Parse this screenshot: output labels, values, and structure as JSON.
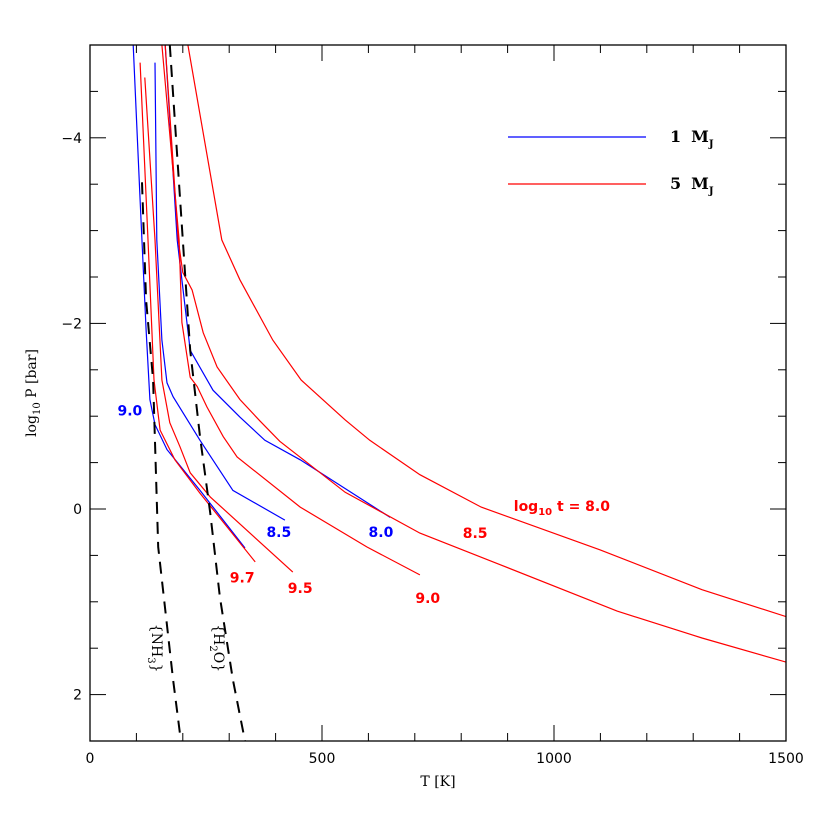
{
  "chart_data": {
    "type": "line",
    "title": "",
    "xlabel": "T [K]",
    "ylabel": {
      "pre": "log",
      "sub": "10",
      "post": " P [bar]"
    },
    "xlim": [
      0,
      1500
    ],
    "ylim": [
      -5,
      2.5
    ],
    "y_inverted": true,
    "grid": false,
    "legend_placement": "top-right",
    "x_ticks": [
      "0",
      "500",
      "1000",
      "1500"
    ],
    "x_tick_values": [
      0,
      500,
      1000,
      1500
    ],
    "y_ticks": [
      "−4",
      "−2",
      "0",
      "2"
    ],
    "y_tick_values": [
      -4,
      -2,
      0,
      2
    ],
    "colors": {
      "1 MJ": "#0000ff",
      "5 MJ": "#ff0000",
      "condensation": "#000000"
    },
    "legend": [
      {
        "num": "1",
        "text": "M",
        "sub": "J",
        "color": "#0000ff"
      },
      {
        "num": "5",
        "text": "M",
        "sub": "J",
        "color": "#ff0000"
      }
    ],
    "series": [
      {
        "mass": "1 MJ",
        "log_age": "9.0",
        "color": "#0000ff",
        "x": [
          93,
          108,
          121,
          129,
          140,
          166,
          237,
          334
        ],
        "y": [
          -5.0,
          -3.33,
          -1.93,
          -1.18,
          -0.91,
          -0.64,
          -0.2,
          0.42
        ]
      },
      {
        "mass": "1 MJ",
        "log_age": "8.5",
        "color": "#0000ff",
        "x": [
          140,
          144,
          155,
          166,
          179,
          237,
          308,
          420
        ],
        "y": [
          -4.81,
          -2.9,
          -1.82,
          -1.36,
          -1.21,
          -0.74,
          -0.2,
          0.12
        ]
      },
      {
        "mass": "1 MJ",
        "log_age": "8.0",
        "color": "#0000ff",
        "x": [
          162,
          188,
          216,
          265,
          323,
          377,
          453,
          647
        ],
        "y": [
          -5.0,
          -2.9,
          -1.71,
          -1.28,
          -0.99,
          -0.74,
          -0.53,
          0.09
        ]
      },
      {
        "mass": "5 MJ",
        "log_age": "9.7",
        "color": "#ff0000",
        "x": [
          108,
          125,
          138,
          151,
          183,
          237,
          356
        ],
        "y": [
          -4.81,
          -2.9,
          -1.39,
          -0.85,
          -0.53,
          -0.17,
          0.57
        ]
      },
      {
        "mass": "5 MJ",
        "log_age": "9.5",
        "color": "#ff0000",
        "x": [
          118,
          140,
          155,
          172,
          194,
          216,
          259,
          437
        ],
        "y": [
          -4.65,
          -2.9,
          -1.39,
          -0.93,
          -0.67,
          -0.39,
          -0.13,
          0.68
        ]
      },
      {
        "mass": "5 MJ",
        "log_age": "9.0",
        "color": "#ff0000",
        "x": [
          155,
          192,
          198,
          216,
          231,
          252,
          287,
          317,
          453,
          597,
          711
        ],
        "y": [
          -5.0,
          -2.9,
          -2.01,
          -1.42,
          -1.32,
          -1.1,
          -0.78,
          -0.56,
          -0.02,
          0.41,
          0.71
        ]
      },
      {
        "mass": "5 MJ",
        "log_age": "8.5",
        "color": "#ff0000",
        "x": [
          162,
          190,
          200,
          220,
          244,
          274,
          323,
          366,
          409,
          550,
          711,
          879,
          1136,
          1319,
          1500
        ],
        "y": [
          -5.0,
          -2.9,
          -2.55,
          -2.36,
          -1.9,
          -1.53,
          -1.18,
          -0.95,
          -0.73,
          -0.18,
          0.26,
          0.59,
          1.1,
          1.39,
          1.65
        ]
      },
      {
        "mass": "5 MJ",
        "log_age": "8.0",
        "color": "#ff0000",
        "x": [
          211,
          284,
          323,
          394,
          455,
          550,
          603,
          711,
          843,
          1099,
          1319,
          1500
        ],
        "y": [
          -5.0,
          -2.9,
          -2.47,
          -1.82,
          -1.39,
          -0.96,
          -0.74,
          -0.37,
          -0.02,
          0.44,
          0.87,
          1.16
        ]
      }
    ],
    "condensation_curves": [
      {
        "species": {
          "pre": "{NH",
          "sub": "3",
          "post": "}"
        },
        "style": "dashed",
        "x": [
          112,
          121,
          136,
          147,
          179,
          196
        ],
        "y": [
          -3.52,
          -2.25,
          -1.39,
          0.41,
          1.84,
          2.5
        ],
        "label_at": [
          134,
          1.5
        ]
      },
      {
        "species": {
          "pre": "{H",
          "sub": "2",
          "post": "O}"
        },
        "style": "dashed",
        "x": [
          172,
          200,
          216,
          233,
          237,
          259,
          280,
          308,
          334
        ],
        "y": [
          -5.0,
          -2.9,
          -1.71,
          -0.96,
          -0.78,
          0.04,
          0.95,
          1.84,
          2.5
        ],
        "label_at": [
          267,
          1.5
        ]
      }
    ],
    "annotations": [
      {
        "text": "9.0",
        "color": "#0000ff",
        "at": [
          86,
          -1.06
        ]
      },
      {
        "text": "8.5",
        "color": "#0000ff",
        "at": [
          407,
          0.25
        ]
      },
      {
        "text": "8.0",
        "color": "#0000ff",
        "at": [
          627,
          0.25
        ]
      },
      {
        "text": "9.7",
        "color": "#ff0000",
        "at": [
          328,
          0.74
        ]
      },
      {
        "text": "9.5",
        "color": "#ff0000",
        "at": [
          453,
          0.85
        ]
      },
      {
        "text": "9.0",
        "color": "#ff0000",
        "at": [
          728,
          0.96
        ]
      },
      {
        "text": "8.5",
        "color": "#ff0000",
        "at": [
          830,
          0.26
        ]
      }
    ],
    "age_title": {
      "pre": "log",
      "sub": "10",
      "post": " t = 8.0",
      "color": "#ff0000",
      "at": [
        1017,
        -0.03
      ]
    }
  }
}
